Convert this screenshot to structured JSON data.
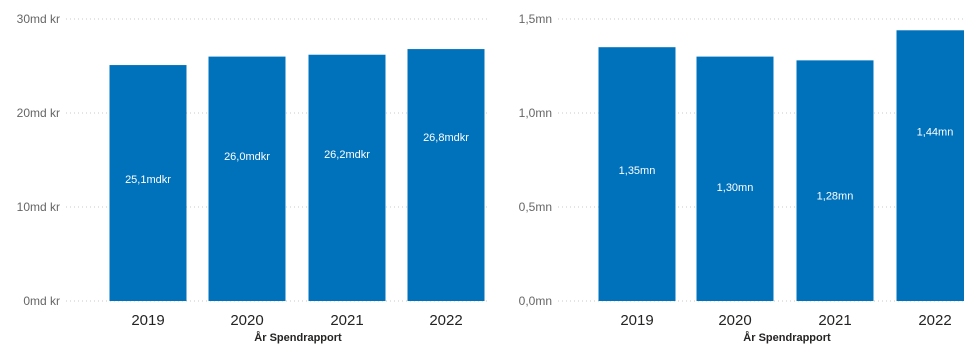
{
  "colors": {
    "bar": "#0072BC"
  },
  "chart_data": [
    {
      "type": "bar",
      "xlabel": "År Spendrapport",
      "categories": [
        "2019",
        "2020",
        "2021",
        "2022"
      ],
      "values": [
        25.1,
        26.0,
        26.2,
        26.8
      ],
      "data_labels": [
        "25,1mdkr",
        "26,0mdkr",
        "26,2mdkr",
        "26,8mdkr"
      ],
      "ylim": [
        0,
        30
      ],
      "yticks": [
        0,
        10,
        20,
        30
      ],
      "ytick_labels": [
        "0md kr",
        "10md kr",
        "20md kr",
        "30md kr"
      ],
      "grid": true
    },
    {
      "type": "bar",
      "xlabel": "År Spendrapport",
      "categories": [
        "2019",
        "2020",
        "2021",
        "2022"
      ],
      "values": [
        1.35,
        1.3,
        1.28,
        1.44
      ],
      "data_labels": [
        "1,35mn",
        "1,30mn",
        "1,28mn",
        "1,44mn"
      ],
      "ylim": [
        0,
        1.5
      ],
      "yticks": [
        0,
        0.5,
        1.0,
        1.5
      ],
      "ytick_labels": [
        "0,0mn",
        "0,5mn",
        "1,0mn",
        "1,5mn"
      ],
      "grid": true
    }
  ]
}
